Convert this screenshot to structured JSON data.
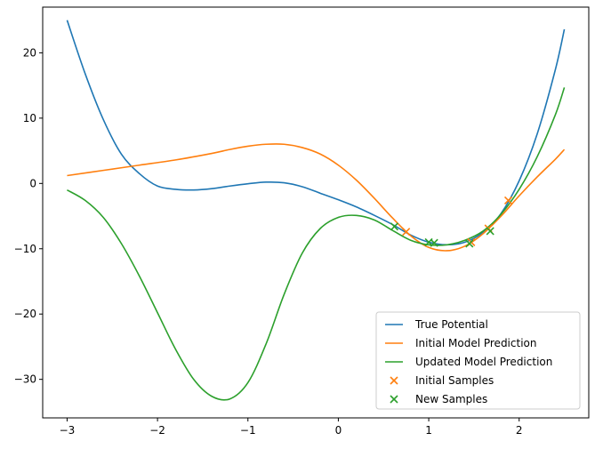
{
  "chart_data": {
    "type": "line",
    "title": "",
    "xlabel": "",
    "ylabel": "",
    "xlim": [
      -3.27,
      2.77
    ],
    "ylim": [
      -35.9,
      27.0
    ],
    "xticks": [
      -3,
      -2,
      -1,
      0,
      1,
      2
    ],
    "xtick_labels": [
      "−3",
      "−2",
      "−1",
      "0",
      "1",
      "2"
    ],
    "yticks": [
      -30,
      -20,
      -10,
      0,
      10,
      20
    ],
    "ytick_labels": [
      "−30",
      "−20",
      "−10",
      "0",
      "10",
      "20"
    ],
    "grid": false,
    "legend_position": "lower-right",
    "series": [
      {
        "name": "True Potential",
        "kind": "line",
        "color": "#1f77b4",
        "x": [
          -3.0,
          -2.8,
          -2.6,
          -2.4,
          -2.2,
          -2.0,
          -1.8,
          -1.6,
          -1.4,
          -1.2,
          -1.0,
          -0.8,
          -0.6,
          -0.4,
          -0.2,
          0.0,
          0.2,
          0.4,
          0.6,
          0.8,
          1.0,
          1.2,
          1.4,
          1.6,
          1.8,
          2.0,
          2.2,
          2.4,
          2.5
        ],
        "y": [
          25.0,
          16.8,
          9.8,
          4.5,
          1.5,
          -0.4,
          -0.9,
          -1.0,
          -0.8,
          -0.4,
          -0.05,
          0.2,
          0.1,
          -0.5,
          -1.5,
          -2.5,
          -3.6,
          -4.9,
          -6.3,
          -7.9,
          -9.0,
          -9.4,
          -9.0,
          -7.5,
          -4.6,
          0.4,
          7.6,
          17.4,
          23.6
        ]
      },
      {
        "name": "Initial Model Prediction",
        "kind": "line",
        "color": "#ff7f0e",
        "x": [
          -3.0,
          -2.6,
          -2.2,
          -1.8,
          -1.4,
          -1.2,
          -1.0,
          -0.8,
          -0.6,
          -0.4,
          -0.2,
          0.0,
          0.2,
          0.4,
          0.6,
          0.8,
          1.0,
          1.2,
          1.4,
          1.6,
          1.8,
          2.0,
          2.2,
          2.4,
          2.5
        ],
        "y": [
          1.2,
          2.0,
          2.8,
          3.6,
          4.6,
          5.2,
          5.7,
          6.0,
          6.0,
          5.5,
          4.5,
          2.8,
          0.5,
          -2.3,
          -5.3,
          -8.0,
          -9.8,
          -10.3,
          -9.6,
          -7.7,
          -5.0,
          -1.9,
          1.0,
          3.7,
          5.2
        ]
      },
      {
        "name": "Updated Model Prediction",
        "kind": "line",
        "color": "#2ca02c",
        "x": [
          -3.0,
          -2.8,
          -2.6,
          -2.4,
          -2.2,
          -2.0,
          -1.8,
          -1.6,
          -1.4,
          -1.2,
          -1.0,
          -0.8,
          -0.6,
          -0.4,
          -0.2,
          0.0,
          0.2,
          0.4,
          0.6,
          0.8,
          1.0,
          1.2,
          1.4,
          1.6,
          1.8,
          2.0,
          2.2,
          2.4,
          2.5
        ],
        "y": [
          -1.0,
          -2.6,
          -5.2,
          -9.2,
          -14.2,
          -19.8,
          -25.4,
          -30.0,
          -32.6,
          -33.0,
          -30.5,
          -24.6,
          -17.0,
          -10.7,
          -6.9,
          -5.2,
          -4.9,
          -5.6,
          -7.2,
          -8.7,
          -9.4,
          -9.4,
          -8.7,
          -7.3,
          -4.7,
          -0.9,
          4.1,
          10.5,
          14.7
        ]
      },
      {
        "name": "Initial Samples",
        "kind": "scatter",
        "marker": "x",
        "color": "#ff7f0e",
        "x": [
          0.75,
          1.47,
          1.66,
          1.88
        ],
        "y": [
          -7.4,
          -9.0,
          -6.9,
          -2.6
        ]
      },
      {
        "name": "New Samples",
        "kind": "scatter",
        "marker": "x",
        "color": "#2ca02c",
        "x": [
          0.62,
          1.0,
          1.06,
          1.45,
          1.68
        ],
        "y": [
          -6.6,
          -9.0,
          -9.1,
          -9.2,
          -7.3
        ]
      }
    ]
  }
}
